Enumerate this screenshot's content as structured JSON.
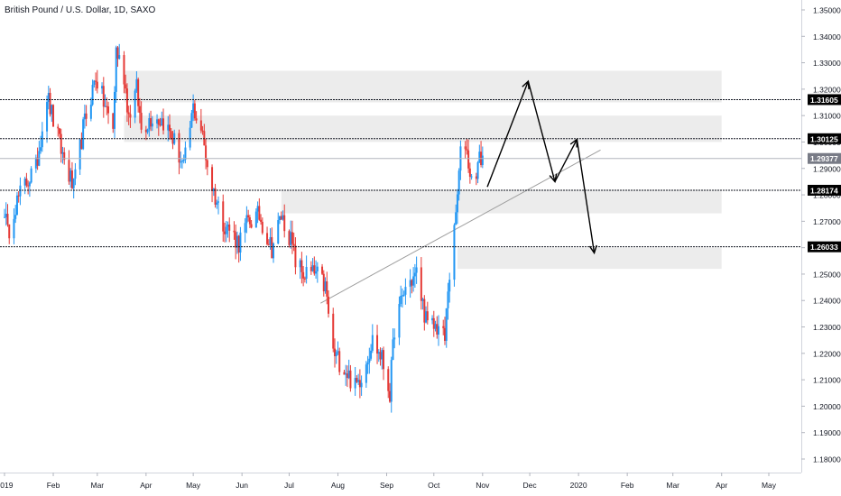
{
  "header": {
    "title": "British Pound / U.S. Dollar, 1D, SAXO"
  },
  "colors": {
    "up": "#2196f3",
    "down": "#e53935",
    "zone": "#ececec",
    "level_line": "#131722",
    "trendline": "#9e9e9e",
    "axis_text": "#131722",
    "current_price_bg": "#787b86"
  },
  "chart_data": {
    "type": "candlestick",
    "title": "British Pound / U.S. Dollar, 1D, SAXO",
    "x_ticks": [
      "2019",
      "Feb",
      "Mar",
      "Apr",
      "May",
      "Jun",
      "Jul",
      "Aug",
      "Sep",
      "Oct",
      "Nov",
      "Dec",
      "2020",
      "Feb",
      "Mar",
      "Apr",
      "May"
    ],
    "y_ticks": [
      "1.35000",
      "1.34000",
      "1.33000",
      "1.32000",
      "1.31000",
      "1.30000",
      "1.29000",
      "1.28000",
      "1.27000",
      "1.26000",
      "1.25000",
      "1.24000",
      "1.23000",
      "1.22000",
      "1.21000",
      "1.20000",
      "1.19000",
      "1.18000"
    ],
    "ylim": [
      1.174,
      1.354
    ],
    "grid": false,
    "price_path": [
      [
        "2019-01-01",
        1.275
      ],
      [
        "2019-01-03",
        1.265
      ],
      [
        "2019-01-07",
        1.275
      ],
      [
        "2019-01-15",
        1.285
      ],
      [
        "2019-01-21",
        1.29
      ],
      [
        "2019-01-28",
        1.318
      ],
      [
        "2019-02-01",
        1.308
      ],
      [
        "2019-02-07",
        1.295
      ],
      [
        "2019-02-14",
        1.282
      ],
      [
        "2019-02-20",
        1.305
      ],
      [
        "2019-02-28",
        1.325
      ],
      [
        "2019-03-05",
        1.315
      ],
      [
        "2019-03-11",
        1.305
      ],
      [
        "2019-03-13",
        1.335
      ],
      [
        "2019-03-18",
        1.325
      ],
      [
        "2019-03-21",
        1.31
      ],
      [
        "2019-03-26",
        1.32
      ],
      [
        "2019-03-29",
        1.305
      ],
      [
        "2019-04-05",
        1.31
      ],
      [
        "2019-04-12",
        1.308
      ],
      [
        "2019-04-19",
        1.3
      ],
      [
        "2019-04-25",
        1.29
      ],
      [
        "2019-05-01",
        1.313
      ],
      [
        "2019-05-06",
        1.305
      ],
      [
        "2019-05-12",
        1.285
      ],
      [
        "2019-05-20",
        1.27
      ],
      [
        "2019-05-30",
        1.262
      ],
      [
        "2019-06-05",
        1.27
      ],
      [
        "2019-06-12",
        1.272
      ],
      [
        "2019-06-20",
        1.26
      ],
      [
        "2019-06-26",
        1.272
      ],
      [
        "2019-07-01",
        1.265
      ],
      [
        "2019-07-05",
        1.255
      ],
      [
        "2019-07-10",
        1.25
      ],
      [
        "2019-07-18",
        1.25
      ],
      [
        "2019-07-24",
        1.245
      ],
      [
        "2019-07-29",
        1.22
      ],
      [
        "2019-08-05",
        1.215
      ],
      [
        "2019-08-12",
        1.207
      ],
      [
        "2019-08-16",
        1.212
      ],
      [
        "2019-08-23",
        1.225
      ],
      [
        "2019-08-29",
        1.218
      ],
      [
        "2019-09-03",
        1.205
      ],
      [
        "2019-09-06",
        1.23
      ],
      [
        "2019-09-13",
        1.245
      ],
      [
        "2019-09-20",
        1.25
      ],
      [
        "2019-09-27",
        1.23
      ],
      [
        "2019-10-04",
        1.23
      ],
      [
        "2019-10-08",
        1.225
      ],
      [
        "2019-10-10",
        1.245
      ],
      [
        "2019-10-14",
        1.265
      ],
      [
        "2019-10-18",
        1.295
      ],
      [
        "2019-10-21",
        1.3
      ],
      [
        "2019-10-25",
        1.285
      ],
      [
        "2019-10-30",
        1.293
      ],
      [
        "2019-11-01",
        1.295
      ]
    ],
    "zones": [
      {
        "from": "2019-03-18",
        "to": "2020-04-01",
        "y1": 1.327,
        "y2": 1.315
      },
      {
        "from": "2019-03-18",
        "to": "2020-04-01",
        "y1": 1.31,
        "y2": 1.3
      },
      {
        "from": "2019-06-26",
        "to": "2020-04-01",
        "y1": 1.282,
        "y2": 1.273
      },
      {
        "from": "2019-10-16",
        "to": "2020-04-01",
        "y1": 1.26,
        "y2": 1.252
      }
    ],
    "levels": [
      {
        "value": 1.31605,
        "label": "1.31605"
      },
      {
        "value": 1.30125,
        "label": "1.30125"
      },
      {
        "value": 1.28174,
        "label": "1.28174"
      },
      {
        "value": 1.26033,
        "label": "1.26033"
      }
    ],
    "current_price": {
      "value": 1.29377,
      "label": "1.29377"
    },
    "trendline": [
      [
        "2019-07-21",
        1.239
      ],
      [
        "2020-01-15",
        1.297
      ]
    ],
    "projection_path": [
      [
        "2019-11-04",
        1.283
      ],
      [
        "2019-11-30",
        1.323
      ],
      [
        "2019-12-17",
        1.285
      ],
      [
        "2019-12-31",
        1.301
      ],
      [
        "2020-01-11",
        1.258
      ]
    ]
  }
}
